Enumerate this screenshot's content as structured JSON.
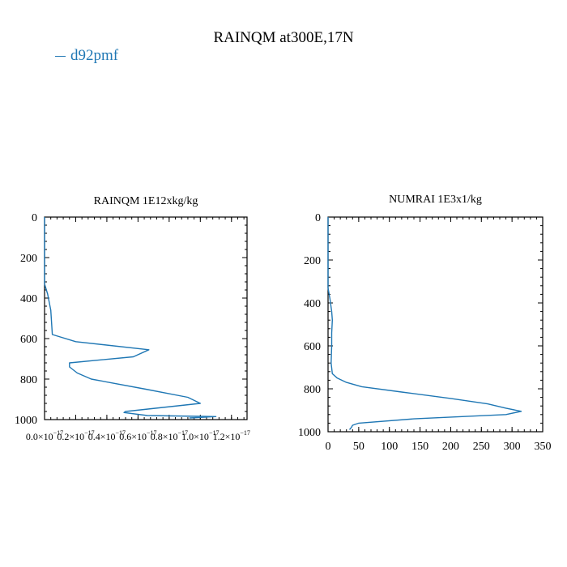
{
  "figure": {
    "title": "RAINQM at300E,17N"
  },
  "legend": {
    "entries": [
      {
        "label": "d92pmf",
        "color": "#1f77b4"
      }
    ]
  },
  "chart_data": [
    {
      "type": "line",
      "title": "RAINQM  1E12xkg/kg",
      "xlabel": "",
      "ylabel": "",
      "xlim": [
        0,
        1.3e-17
      ],
      "ylim": [
        1000,
        0
      ],
      "y_inverted": true,
      "xticks": [
        0,
        2e-18,
        4e-18,
        6e-18,
        8e-18,
        1e-17,
        1.2e-17
      ],
      "xtick_labels": [
        "0.0×10",
        "0.2×10",
        "0.4×10",
        "0.6×10",
        "0.8×10",
        "1.0×10",
        "1.2×10"
      ],
      "xtick_exponents": [
        "−17",
        "−17",
        "−17",
        "−17",
        "−17",
        "−17",
        "−17"
      ],
      "yticks": [
        0,
        200,
        400,
        600,
        800,
        1000
      ],
      "ytick_labels": [
        "0",
        "200",
        "400",
        "600",
        "800",
        "1000"
      ],
      "grid": false,
      "series": [
        {
          "name": "d92pmf",
          "color": "#1f77b4",
          "x": [
            0,
            0,
            2e-19,
            4e-19,
            5e-19,
            2e-18,
            6.7e-18,
            5.7e-18,
            1.6e-18,
            1.6e-18,
            2.1e-18,
            3e-18,
            6.5e-18,
            9.2e-18,
            1e-17,
            5.2e-18,
            5.1e-18,
            6.6e-18,
            1.1e-17,
            9.3e-18
          ],
          "y": [
            0,
            330,
            380,
            460,
            580,
            615,
            655,
            690,
            720,
            740,
            770,
            800,
            850,
            890,
            920,
            960,
            965,
            980,
            985,
            992
          ]
        }
      ]
    },
    {
      "type": "line",
      "title": "NUMRAI  1E3x1/kg",
      "xlabel": "",
      "ylabel": "",
      "xlim": [
        0,
        350
      ],
      "ylim": [
        1000,
        0
      ],
      "y_inverted": true,
      "xticks": [
        0,
        50,
        100,
        150,
        200,
        250,
        300,
        350
      ],
      "xtick_labels": [
        "0",
        "50",
        "100",
        "150",
        "200",
        "250",
        "300",
        "350"
      ],
      "yticks": [
        0,
        200,
        400,
        600,
        800,
        1000
      ],
      "ytick_labels": [
        "0",
        "200",
        "400",
        "600",
        "800",
        "1000"
      ],
      "grid": false,
      "series": [
        {
          "name": "d92pmf",
          "color": "#1f77b4",
          "x": [
            0,
            0,
            3,
            6,
            7,
            6,
            6,
            5,
            7,
            15,
            30,
            55,
            120,
            200,
            260,
            290,
            315,
            290,
            140,
            50,
            40,
            38,
            35
          ],
          "y": [
            0,
            330,
            380,
            440,
            480,
            540,
            600,
            680,
            730,
            750,
            770,
            790,
            815,
            845,
            870,
            890,
            905,
            920,
            940,
            960,
            970,
            980,
            990
          ]
        }
      ]
    }
  ]
}
